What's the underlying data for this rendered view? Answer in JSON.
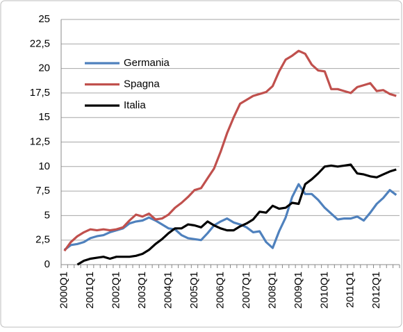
{
  "chart_data": {
    "type": "line",
    "categories": [
      "2000Q1",
      null,
      null,
      null,
      "2001Q1",
      null,
      null,
      null,
      "2002Q1",
      null,
      null,
      null,
      "2003Q1",
      null,
      null,
      null,
      "2004Q1",
      null,
      null,
      null,
      "2005Q1",
      null,
      null,
      null,
      "2006Q1",
      null,
      null,
      null,
      "2007Q1",
      null,
      null,
      null,
      "2008Q1",
      null,
      null,
      null,
      "2009Q1",
      null,
      null,
      null,
      "2010Q1",
      null,
      null,
      null,
      "2011Q1",
      null,
      null,
      null,
      "2012Q1",
      null,
      null,
      null
    ],
    "series": [
      {
        "name": "Germania",
        "color": "#4f81bd",
        "values": [
          1.5,
          2.0,
          2.1,
          2.3,
          2.7,
          2.9,
          3.0,
          3.3,
          3.5,
          3.7,
          4.2,
          4.4,
          4.5,
          4.8,
          4.5,
          4.1,
          3.7,
          3.6,
          3.0,
          2.7,
          2.6,
          2.5,
          3.2,
          4.0,
          4.4,
          4.7,
          4.3,
          4.1,
          3.8,
          3.3,
          3.4,
          2.3,
          1.7,
          3.4,
          4.8,
          6.9,
          8.2,
          7.2,
          7.2,
          6.6,
          5.8,
          5.2,
          4.6,
          4.7,
          4.7,
          4.9,
          4.5,
          5.3,
          6.2,
          6.8,
          7.6,
          7.1
        ]
      },
      {
        "name": "Spagna",
        "color": "#c0504d",
        "values": [
          1.4,
          2.3,
          2.9,
          3.3,
          3.6,
          3.5,
          3.6,
          3.5,
          3.6,
          3.8,
          4.5,
          5.1,
          4.9,
          5.2,
          4.6,
          4.7,
          5.1,
          5.8,
          6.3,
          6.9,
          7.6,
          7.8,
          8.8,
          9.8,
          11.5,
          13.4,
          15.0,
          16.4,
          16.8,
          17.2,
          17.4,
          17.6,
          18.2,
          19.7,
          20.9,
          21.3,
          21.8,
          21.5,
          20.4,
          19.8,
          19.7,
          17.9,
          17.9,
          17.7,
          17.5,
          18.1,
          18.3,
          18.5,
          17.7,
          17.8,
          17.4,
          17.2
        ]
      },
      {
        "name": "Italia",
        "color": "#000000",
        "values": [
          null,
          null,
          0.0,
          0.4,
          0.6,
          0.7,
          0.8,
          0.6,
          0.8,
          0.8,
          0.8,
          0.9,
          1.1,
          1.5,
          2.1,
          2.6,
          3.2,
          3.7,
          3.7,
          4.1,
          4.0,
          3.8,
          4.4,
          4.0,
          3.7,
          3.5,
          3.5,
          3.9,
          4.2,
          4.6,
          5.4,
          5.3,
          6.0,
          5.7,
          5.8,
          6.3,
          6.2,
          8.2,
          8.7,
          9.3,
          10.0,
          10.1,
          10.0,
          10.1,
          10.2,
          9.3,
          9.2,
          9.0,
          8.9,
          9.2,
          9.5,
          9.7
        ]
      }
    ],
    "ylim": [
      0,
      25
    ],
    "yticks": [
      0,
      {
        "value": 2.5,
        "label": "2,5"
      },
      5,
      {
        "value": 7.5,
        "label": "7,5"
      },
      10,
      {
        "value": 12.5,
        "label": "12,5"
      },
      15,
      {
        "value": 17.5,
        "label": "17,5"
      },
      20,
      {
        "value": 22.5,
        "label": "22,5"
      },
      25
    ],
    "grid": true,
    "legend": "upper left"
  }
}
